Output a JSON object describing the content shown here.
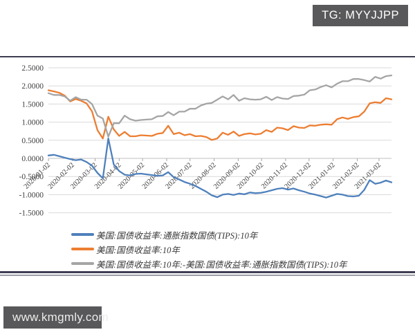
{
  "watermarks": {
    "top_right": "TG: MYYJJPP",
    "bottom_left": "www.kmgmly.com"
  },
  "colors": {
    "rule": "#3d3d52",
    "rule_secondary": "#9c9ca4",
    "badge_background": "#59595b",
    "badge_text": "#ffffff",
    "gridline": "#d9d9d9",
    "zero_axis": "#bfbfbf",
    "tick_mark": "#a6a6a6",
    "tick_label": "#404040",
    "series_blue": "#4e80bc",
    "series_orange": "#ed7d31",
    "series_gray": "#a5a5a5"
  },
  "chart_data": {
    "type": "line",
    "title": "",
    "xlabel": "",
    "ylabel": "",
    "grid": true,
    "legend_position": "bottom",
    "ylim": [
      -1.5,
      2.5
    ],
    "sampling": "weekly points from 2020-01-02 to 2021-03-25",
    "y_ticks": [
      {
        "label": "2.5000",
        "value": 2.5
      },
      {
        "label": "2.0000",
        "value": 2.0
      },
      {
        "label": "1.5000",
        "value": 1.5
      },
      {
        "label": "1.0000",
        "value": 1.0
      },
      {
        "label": "0.5000",
        "value": 0.5
      },
      {
        "label": "0.0000",
        "value": 0.0
      },
      {
        "label": "-0.5000",
        "value": -0.5
      },
      {
        "label": "-1.0000",
        "value": -1.0
      },
      {
        "label": "-1.5000",
        "value": -1.5
      }
    ],
    "x_total_days": 441,
    "x_ticks": [
      {
        "label": "2020-01-02",
        "day": 0
      },
      {
        "label": "2020-02-02",
        "day": 31
      },
      {
        "label": "2020-03-02",
        "day": 60
      },
      {
        "label": "2020-04-02",
        "day": 91
      },
      {
        "label": "2020-05-02",
        "day": 121
      },
      {
        "label": "2020-06-02",
        "day": 152
      },
      {
        "label": "2020-07-02",
        "day": 182
      },
      {
        "label": "2020-08-02",
        "day": 213
      },
      {
        "label": "2020-09-02",
        "day": 244
      },
      {
        "label": "2020-10-02",
        "day": 274
      },
      {
        "label": "2020-11-02",
        "day": 305
      },
      {
        "label": "2020-12-02",
        "day": 335
      },
      {
        "label": "2021-01-02",
        "day": 366
      },
      {
        "label": "2021-02-02",
        "day": 397
      },
      {
        "label": "2021-03-02",
        "day": 425
      }
    ],
    "series": [
      {
        "name": "美国:国债收益率:通胀指数国债(TIPS):10年",
        "color": "#4e80bc",
        "values": [
          0.08,
          0.1,
          0.06,
          0.02,
          -0.02,
          -0.05,
          -0.03,
          -0.1,
          -0.2,
          -0.4,
          -0.55,
          0.55,
          -0.17,
          -0.35,
          -0.45,
          -0.47,
          -0.43,
          -0.42,
          -0.44,
          -0.46,
          -0.48,
          -0.47,
          -0.38,
          -0.52,
          -0.58,
          -0.65,
          -0.7,
          -0.76,
          -0.84,
          -0.92,
          -1.02,
          -1.07,
          -1.0,
          -0.98,
          -1.01,
          -0.97,
          -0.99,
          -0.94,
          -0.96,
          -0.95,
          -0.92,
          -0.88,
          -0.84,
          -0.82,
          -0.86,
          -0.83,
          -0.88,
          -0.92,
          -0.97,
          -1.0,
          -1.04,
          -1.08,
          -1.03,
          -0.98,
          -1.0,
          -1.04,
          -1.05,
          -1.03,
          -0.87,
          -0.6,
          -0.7,
          -0.67,
          -0.61,
          -0.66
        ]
      },
      {
        "name": "美国:国债收益率:10年",
        "color": "#ed7d31",
        "values": [
          1.88,
          1.85,
          1.81,
          1.73,
          1.57,
          1.64,
          1.59,
          1.52,
          1.3,
          0.78,
          0.55,
          1.15,
          0.8,
          0.62,
          0.73,
          0.61,
          0.61,
          0.64,
          0.63,
          0.62,
          0.68,
          0.7,
          0.9,
          0.67,
          0.71,
          0.64,
          0.67,
          0.61,
          0.62,
          0.59,
          0.51,
          0.55,
          0.71,
          0.65,
          0.74,
          0.62,
          0.67,
          0.69,
          0.66,
          0.68,
          0.78,
          0.73,
          0.85,
          0.83,
          0.78,
          0.89,
          0.85,
          0.84,
          0.91,
          0.9,
          0.93,
          0.94,
          0.93,
          1.08,
          1.13,
          1.09,
          1.14,
          1.16,
          1.29,
          1.52,
          1.55,
          1.53,
          1.66,
          1.63
        ]
      },
      {
        "name": "美国:国债收益率:10年:-美国:国债收益率:通胀指数国债(TIPS):10年",
        "color": "#a5a5a5",
        "values": [
          1.8,
          1.75,
          1.75,
          1.71,
          1.59,
          1.69,
          1.62,
          1.62,
          1.5,
          1.18,
          1.1,
          0.6,
          0.97,
          0.97,
          1.18,
          1.08,
          1.04,
          1.06,
          1.07,
          1.08,
          1.16,
          1.17,
          1.28,
          1.19,
          1.29,
          1.29,
          1.37,
          1.37,
          1.46,
          1.51,
          1.53,
          1.62,
          1.71,
          1.63,
          1.75,
          1.59,
          1.66,
          1.63,
          1.62,
          1.63,
          1.7,
          1.61,
          1.69,
          1.65,
          1.64,
          1.72,
          1.73,
          1.76,
          1.88,
          1.9,
          1.97,
          2.02,
          1.96,
          2.06,
          2.13,
          2.13,
          2.19,
          2.19,
          2.16,
          2.12,
          2.25,
          2.2,
          2.27,
          2.29
        ]
      }
    ]
  }
}
